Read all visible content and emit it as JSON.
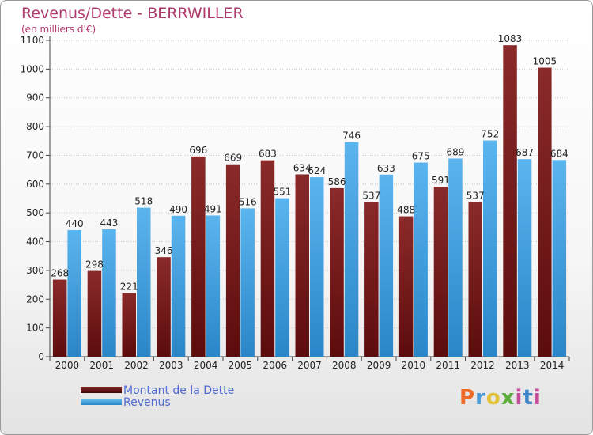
{
  "chart_data": {
    "type": "bar",
    "title": "Revenus/Dette - BERRWILLER",
    "subtitle": "(en milliers d'€)",
    "categories": [
      "2000",
      "2001",
      "2002",
      "2003",
      "2004",
      "2005",
      "2006",
      "2007",
      "2008",
      "2009",
      "2010",
      "2011",
      "2012",
      "2013",
      "2014"
    ],
    "series": [
      {
        "name": "Montant de la Dette",
        "color": "#7a1f1f",
        "values": [
          268,
          298,
          221,
          346,
          696,
          669,
          683,
          634,
          586,
          537,
          488,
          591,
          537,
          1083,
          1005
        ]
      },
      {
        "name": "Revenus",
        "color": "#4aa3e0",
        "values": [
          440,
          443,
          518,
          490,
          491,
          516,
          551,
          624,
          746,
          633,
          675,
          689,
          752,
          687,
          684
        ]
      }
    ],
    "data_labels": [
      [
        "268",
        "298",
        "221",
        "346",
        "696",
        "669",
        "683",
        "634",
        "586",
        "537",
        "488",
        "591",
        "537",
        "1083",
        "1005"
      ],
      [
        "440",
        "443",
        "518",
        "490",
        "491",
        "516",
        "551",
        "624",
        "746",
        "633",
        "675",
        "689",
        "752",
        "687",
        "684"
      ]
    ],
    "yticks": [
      0,
      100,
      200,
      300,
      400,
      500,
      600,
      700,
      800,
      900,
      1000,
      1100
    ],
    "ylim": [
      0,
      1100
    ],
    "grid": true,
    "legend_placement": "bottom-left"
  },
  "legend": {
    "debt_label": "Montant de la Dette",
    "revenue_label": "Revenus"
  },
  "logo": {
    "text": "Proxiti",
    "p": "P",
    "r": "r",
    "o": "o",
    "x": "x",
    "i": "i",
    "t": "t",
    "i2": "i"
  }
}
